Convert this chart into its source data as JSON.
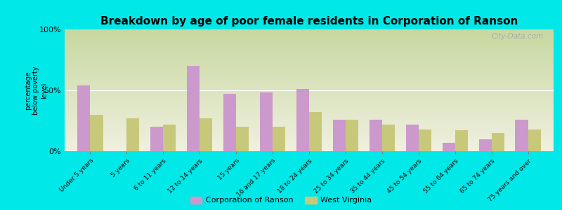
{
  "title": "Breakdown by age of poor female residents in Corporation of Ranson",
  "ylabel": "percentage\nbelow poverty\nlevel",
  "categories": [
    "Under 5 years",
    "5 years",
    "6 to 11 years",
    "12 to 14 years",
    "15 years",
    "16 and 17 years",
    "18 to 24 years",
    "25 to 34 years",
    "35 to 44 years",
    "45 to 54 years",
    "55 to 64 years",
    "65 to 74 years",
    "75 years and over"
  ],
  "ranson_values": [
    54,
    0,
    20,
    70,
    47,
    48,
    51,
    26,
    26,
    22,
    7,
    10,
    26
  ],
  "wv_values": [
    30,
    27,
    22,
    27,
    20,
    20,
    32,
    26,
    22,
    18,
    17,
    15,
    18
  ],
  "ranson_color": "#cc99cc",
  "wv_color": "#c8c87a",
  "plot_bg_color_top": "#c8d8a0",
  "plot_bg_color_bottom": "#f0f0e0",
  "ylim": [
    0,
    100
  ],
  "ytick_labels": [
    "0%",
    "50%",
    "100%"
  ],
  "bar_width": 0.35,
  "legend_ranson": "Corporation of Ranson",
  "legend_wv": "West Virginia",
  "watermark": "City-Data.com",
  "background_color": "#00e8e8",
  "title_fontsize": 11
}
